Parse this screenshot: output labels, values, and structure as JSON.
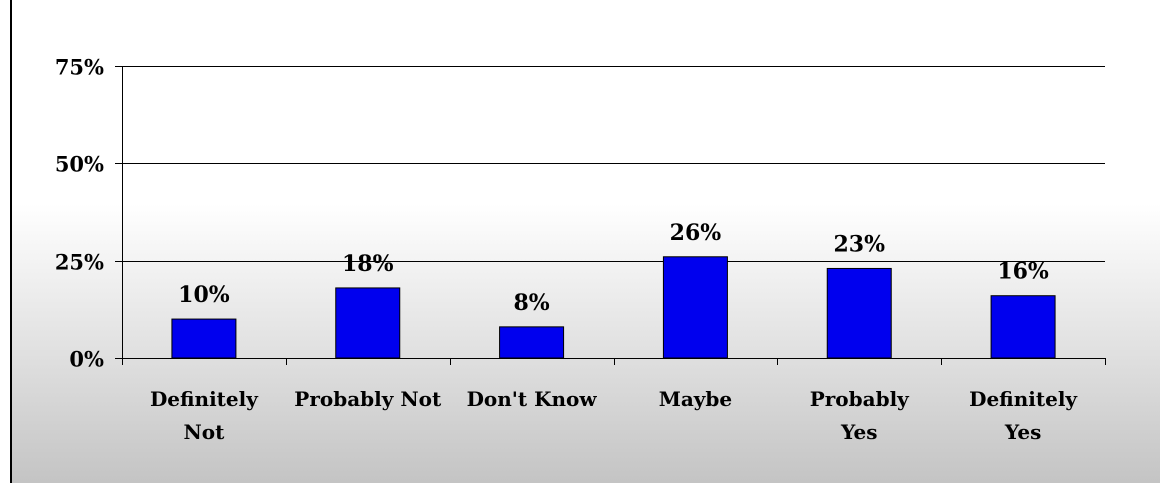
{
  "chart_data": {
    "type": "bar",
    "categories": [
      [
        "Definitely",
        "Not"
      ],
      [
        "Probably Not"
      ],
      [
        "Don't Know"
      ],
      [
        "Maybe"
      ],
      [
        "Probably",
        "Yes"
      ],
      [
        "Definitely",
        "Yes"
      ]
    ],
    "values": [
      10,
      18,
      8,
      26,
      23,
      16
    ],
    "data_labels": [
      "10%",
      "18%",
      "8%",
      "26%",
      "23%",
      "16%"
    ],
    "yticks": [
      {
        "value": 0,
        "label": "0%"
      },
      {
        "value": 25,
        "label": "25%"
      },
      {
        "value": 50,
        "label": "50%"
      },
      {
        "value": 75,
        "label": "75%"
      }
    ],
    "ylim": [
      0,
      75
    ],
    "grid": true,
    "bar_color": "#0000ee",
    "title": "",
    "xlabel": "",
    "ylabel": ""
  }
}
